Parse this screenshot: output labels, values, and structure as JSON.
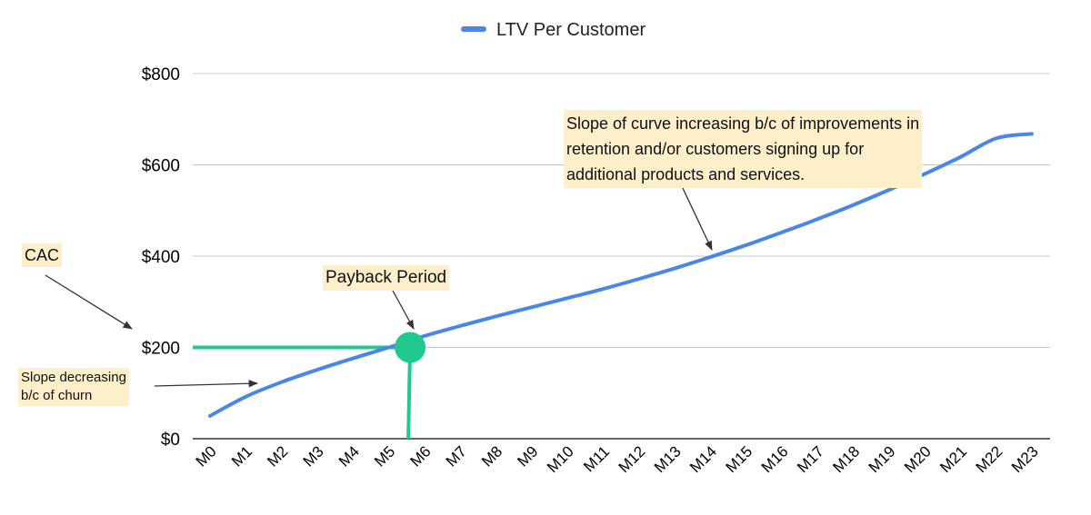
{
  "legend": {
    "label": "LTV Per Customer",
    "color": "#4a86e8"
  },
  "annotations": {
    "cac": "CAC",
    "payback": "Payback Period",
    "slope_increasing": "Slope of curve increasing b/c of improvements in retention and/or customers signing up for additional products and services.",
    "slope_increasing_lines": [
      "Slope of curve increasing b/c of improvements in",
      "retention and/or customers signing up for",
      "additional products and services."
    ],
    "slope_decreasing_lines": [
      "Slope decreasing",
      "b/c of churn"
    ]
  },
  "chart_data": {
    "type": "line",
    "categories": [
      "M0",
      "M1",
      "M2",
      "M3",
      "M4",
      "M5",
      "M6",
      "M7",
      "M8",
      "M9",
      "M10",
      "M11",
      "M12",
      "M13",
      "M14",
      "M15",
      "M16",
      "M17",
      "M18",
      "M19",
      "M20",
      "M21",
      "M22",
      "M23"
    ],
    "series": [
      {
        "name": "LTV Per Customer",
        "color": "#4a86e8",
        "values": [
          50,
          92,
          124,
          151,
          176,
          200,
          225,
          247,
          268,
          288,
          308,
          328,
          350,
          373,
          398,
          424,
          452,
          481,
          512,
          545,
          580,
          617,
          658,
          668
        ]
      }
    ],
    "y_ticks": [
      0,
      200,
      400,
      600,
      800
    ],
    "y_tick_labels": [
      "$0",
      "$200",
      "$400",
      "$600",
      "$800"
    ],
    "ylim": [
      0,
      800
    ],
    "grid": true,
    "legend_position": "top",
    "cac_level": 200,
    "payback_month": 5.6,
    "payback_color": "#1fc98f"
  }
}
